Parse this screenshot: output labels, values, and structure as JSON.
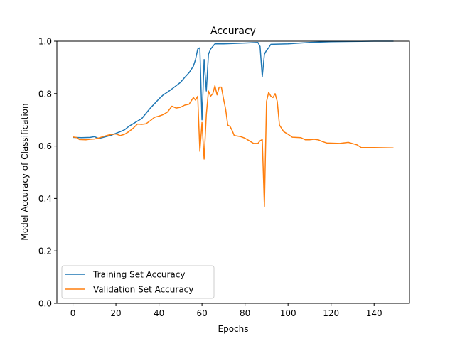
{
  "chart_data": {
    "type": "line",
    "title": "Accuracy",
    "xlabel": "Epochs",
    "ylabel": "Model Accuracy of Classification",
    "xlim": [
      -7.45,
      156.45
    ],
    "ylim": [
      0.0,
      1.0
    ],
    "xticks": [
      "0",
      "20",
      "40",
      "60",
      "80",
      "100",
      "120",
      "140"
    ],
    "yticks": [
      "0.0",
      "0.2",
      "0.4",
      "0.6",
      "0.8",
      "1.0"
    ],
    "grid": false,
    "legend_position": "lower-left",
    "series": [
      {
        "name": "Training Set Accuracy",
        "color": "#1f77b4",
        "points": [
          [
            0,
            0.633
          ],
          [
            4,
            0.632
          ],
          [
            8,
            0.633
          ],
          [
            10,
            0.636
          ],
          [
            12,
            0.629
          ],
          [
            14,
            0.633
          ],
          [
            18,
            0.642
          ],
          [
            22,
            0.655
          ],
          [
            24,
            0.662
          ],
          [
            26,
            0.675
          ],
          [
            28,
            0.685
          ],
          [
            30,
            0.695
          ],
          [
            32,
            0.705
          ],
          [
            34,
            0.725
          ],
          [
            36,
            0.745
          ],
          [
            38,
            0.762
          ],
          [
            40,
            0.78
          ],
          [
            42,
            0.795
          ],
          [
            44,
            0.806
          ],
          [
            46,
            0.818
          ],
          [
            48,
            0.83
          ],
          [
            50,
            0.843
          ],
          [
            52,
            0.862
          ],
          [
            54,
            0.88
          ],
          [
            56,
            0.905
          ],
          [
            57,
            0.93
          ],
          [
            58,
            0.97
          ],
          [
            59,
            0.975
          ],
          [
            60,
            0.7
          ],
          [
            61,
            0.93
          ],
          [
            62,
            0.81
          ],
          [
            63,
            0.95
          ],
          [
            64,
            0.97
          ],
          [
            66,
            0.99
          ],
          [
            70,
            0.99
          ],
          [
            80,
            0.993
          ],
          [
            86,
            0.995
          ],
          [
            87,
            0.98
          ],
          [
            88,
            0.865
          ],
          [
            89,
            0.95
          ],
          [
            90,
            0.965
          ],
          [
            91,
            0.975
          ],
          [
            92,
            0.988
          ],
          [
            100,
            0.99
          ],
          [
            110,
            0.995
          ],
          [
            120,
            0.998
          ],
          [
            130,
            0.999
          ],
          [
            140,
            1.0
          ],
          [
            149,
            1.0
          ]
        ]
      },
      {
        "name": "Validation Set Accuracy",
        "color": "#ff7f0e",
        "points": [
          [
            0,
            0.635
          ],
          [
            2,
            0.632
          ],
          [
            3,
            0.625
          ],
          [
            6,
            0.624
          ],
          [
            8,
            0.626
          ],
          [
            10,
            0.627
          ],
          [
            12,
            0.631
          ],
          [
            14,
            0.636
          ],
          [
            16,
            0.641
          ],
          [
            18,
            0.645
          ],
          [
            20,
            0.646
          ],
          [
            22,
            0.64
          ],
          [
            24,
            0.645
          ],
          [
            26,
            0.655
          ],
          [
            28,
            0.668
          ],
          [
            30,
            0.684
          ],
          [
            32,
            0.683
          ],
          [
            34,
            0.685
          ],
          [
            36,
            0.697
          ],
          [
            38,
            0.71
          ],
          [
            40,
            0.714
          ],
          [
            42,
            0.72
          ],
          [
            44,
            0.73
          ],
          [
            46,
            0.752
          ],
          [
            48,
            0.745
          ],
          [
            50,
            0.748
          ],
          [
            52,
            0.756
          ],
          [
            54,
            0.76
          ],
          [
            56,
            0.785
          ],
          [
            57,
            0.775
          ],
          [
            58,
            0.79
          ],
          [
            59,
            0.58
          ],
          [
            60,
            0.69
          ],
          [
            61,
            0.55
          ],
          [
            62,
            0.72
          ],
          [
            63,
            0.81
          ],
          [
            64,
            0.79
          ],
          [
            65,
            0.8
          ],
          [
            66,
            0.83
          ],
          [
            67,
            0.795
          ],
          [
            68,
            0.825
          ],
          [
            69,
            0.825
          ],
          [
            70,
            0.78
          ],
          [
            71,
            0.74
          ],
          [
            72,
            0.68
          ],
          [
            73,
            0.675
          ],
          [
            74,
            0.66
          ],
          [
            75,
            0.64
          ],
          [
            78,
            0.636
          ],
          [
            80,
            0.63
          ],
          [
            82,
            0.62
          ],
          [
            84,
            0.61
          ],
          [
            86,
            0.61
          ],
          [
            87,
            0.62
          ],
          [
            88,
            0.625
          ],
          [
            89,
            0.37
          ],
          [
            90,
            0.77
          ],
          [
            91,
            0.805
          ],
          [
            92,
            0.79
          ],
          [
            93,
            0.785
          ],
          [
            94,
            0.8
          ],
          [
            95,
            0.77
          ],
          [
            96,
            0.68
          ],
          [
            98,
            0.655
          ],
          [
            100,
            0.645
          ],
          [
            102,
            0.634
          ],
          [
            106,
            0.632
          ],
          [
            108,
            0.624
          ],
          [
            110,
            0.624
          ],
          [
            112,
            0.626
          ],
          [
            114,
            0.624
          ],
          [
            116,
            0.617
          ],
          [
            118,
            0.612
          ],
          [
            124,
            0.61
          ],
          [
            128,
            0.614
          ],
          [
            132,
            0.605
          ],
          [
            134,
            0.594
          ],
          [
            140,
            0.594
          ],
          [
            149,
            0.593
          ]
        ]
      }
    ]
  }
}
